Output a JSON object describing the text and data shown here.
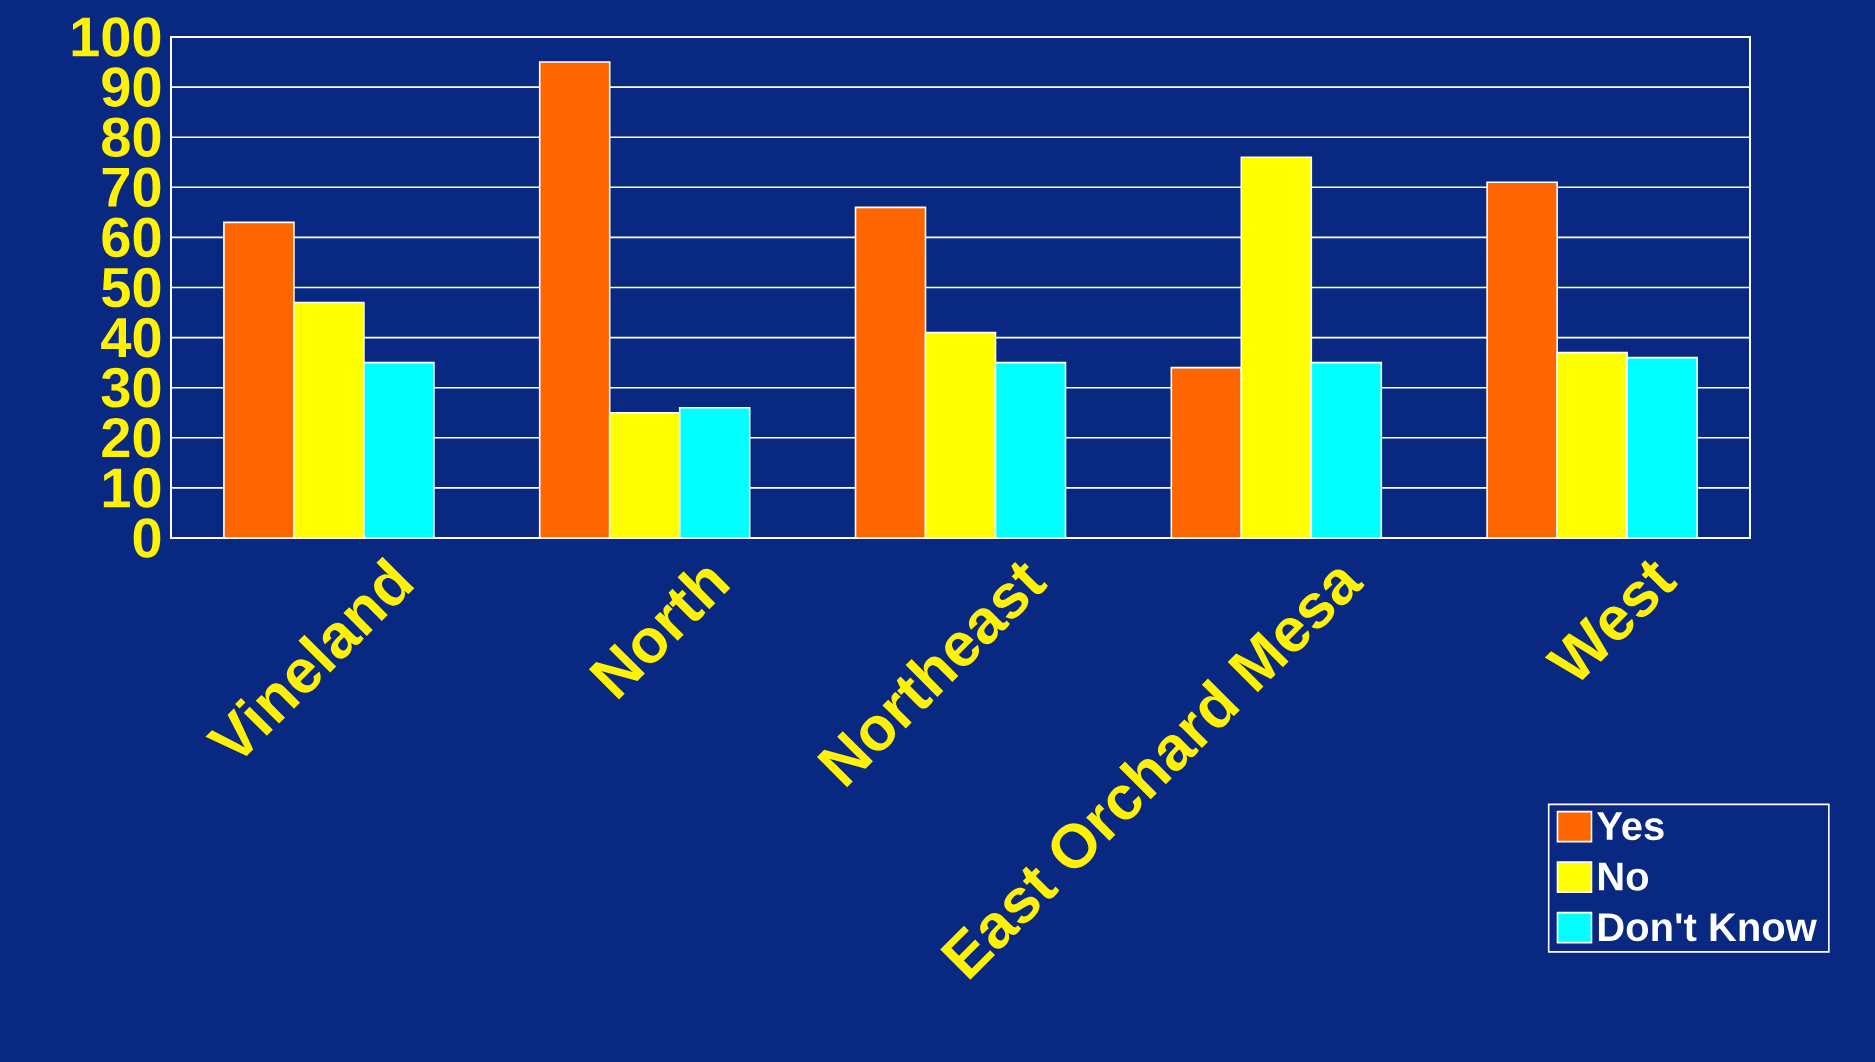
{
  "chart_data": {
    "type": "bar",
    "categories": [
      "Vineland",
      "North",
      "Northeast",
      "East Orchard Mesa",
      "West"
    ],
    "series": [
      {
        "name": "Yes",
        "color": "#ff6600",
        "values": [
          63,
          95,
          66,
          34,
          71
        ]
      },
      {
        "name": "No",
        "color": "#ffff00",
        "values": [
          47,
          25,
          41,
          76,
          37
        ]
      },
      {
        "name": "Don't Know",
        "color": "#00ffff",
        "values": [
          35,
          26,
          35,
          35,
          36
        ]
      }
    ],
    "ylim": [
      0,
      100
    ],
    "yticks": [
      0,
      10,
      20,
      30,
      40,
      50,
      60,
      70,
      80,
      90,
      100
    ],
    "grid": "y",
    "legend": "bottom right"
  }
}
